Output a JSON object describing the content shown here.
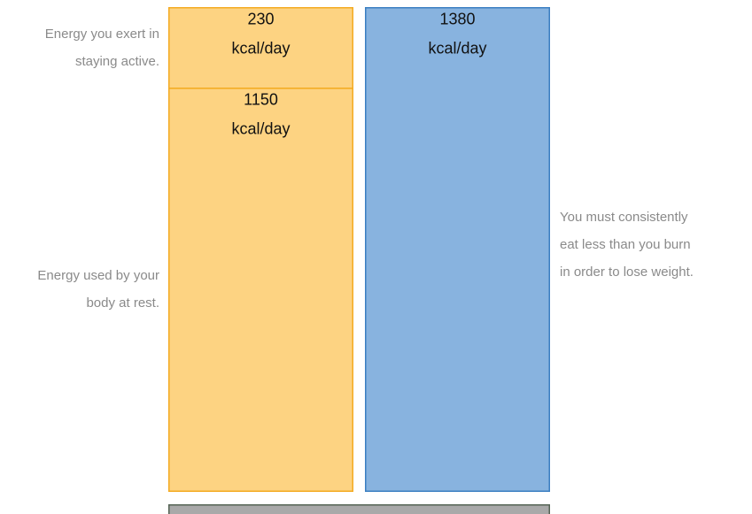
{
  "stack": [
    {
      "value": 230,
      "note": [
        "Energy you exert in",
        "staying active."
      ]
    },
    {
      "value": 1150,
      "note": [
        "Energy used by your",
        "body at rest."
      ]
    }
  ],
  "compare": {
    "value": 1380,
    "note": [
      "You must consistently",
      "eat less than you burn",
      "in order to lose weight."
    ]
  },
  "unit": "kcal/day"
}
